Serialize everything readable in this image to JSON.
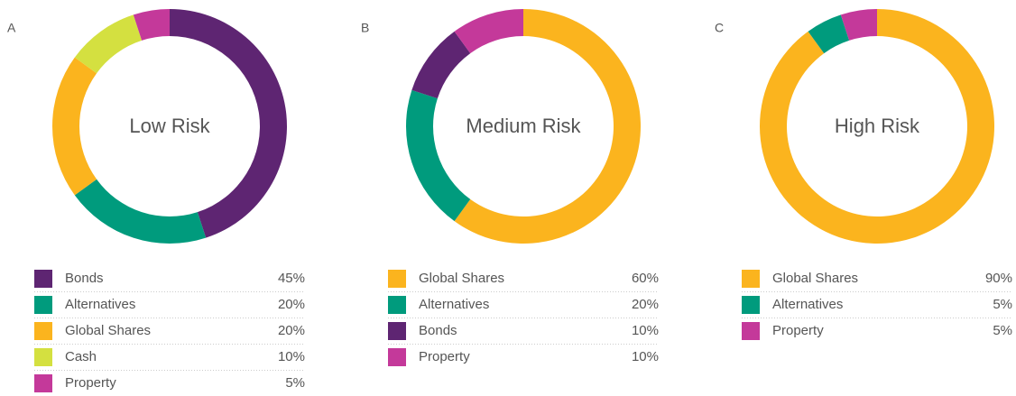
{
  "chart_data": [
    {
      "type": "donut",
      "label": "A",
      "title": "Low Risk",
      "categories": [
        "Bonds",
        "Alternatives",
        "Global Shares",
        "Cash",
        "Property"
      ],
      "values": [
        45,
        20,
        20,
        10,
        5
      ],
      "value_labels": [
        "45%",
        "20%",
        "20%",
        "10%",
        "5%"
      ],
      "colors": [
        "#5e2572",
        "#009b7d",
        "#fbb41e",
        "#d4e040",
        "#c4399a"
      ]
    },
    {
      "type": "donut",
      "label": "B",
      "title": "Medium Risk",
      "categories": [
        "Global Shares",
        "Alternatives",
        "Bonds",
        "Property"
      ],
      "values": [
        60,
        20,
        10,
        10
      ],
      "value_labels": [
        "60%",
        "20%",
        "10%",
        "10%"
      ],
      "colors": [
        "#fbb41e",
        "#009b7d",
        "#5e2572",
        "#c4399a"
      ]
    },
    {
      "type": "donut",
      "label": "C",
      "title": "High Risk",
      "categories": [
        "Global Shares",
        "Alternatives",
        "Property"
      ],
      "values": [
        90,
        5,
        5
      ],
      "value_labels": [
        "90%",
        "5%",
        "5%"
      ],
      "colors": [
        "#fbb41e",
        "#009b7d",
        "#c4399a"
      ]
    }
  ]
}
